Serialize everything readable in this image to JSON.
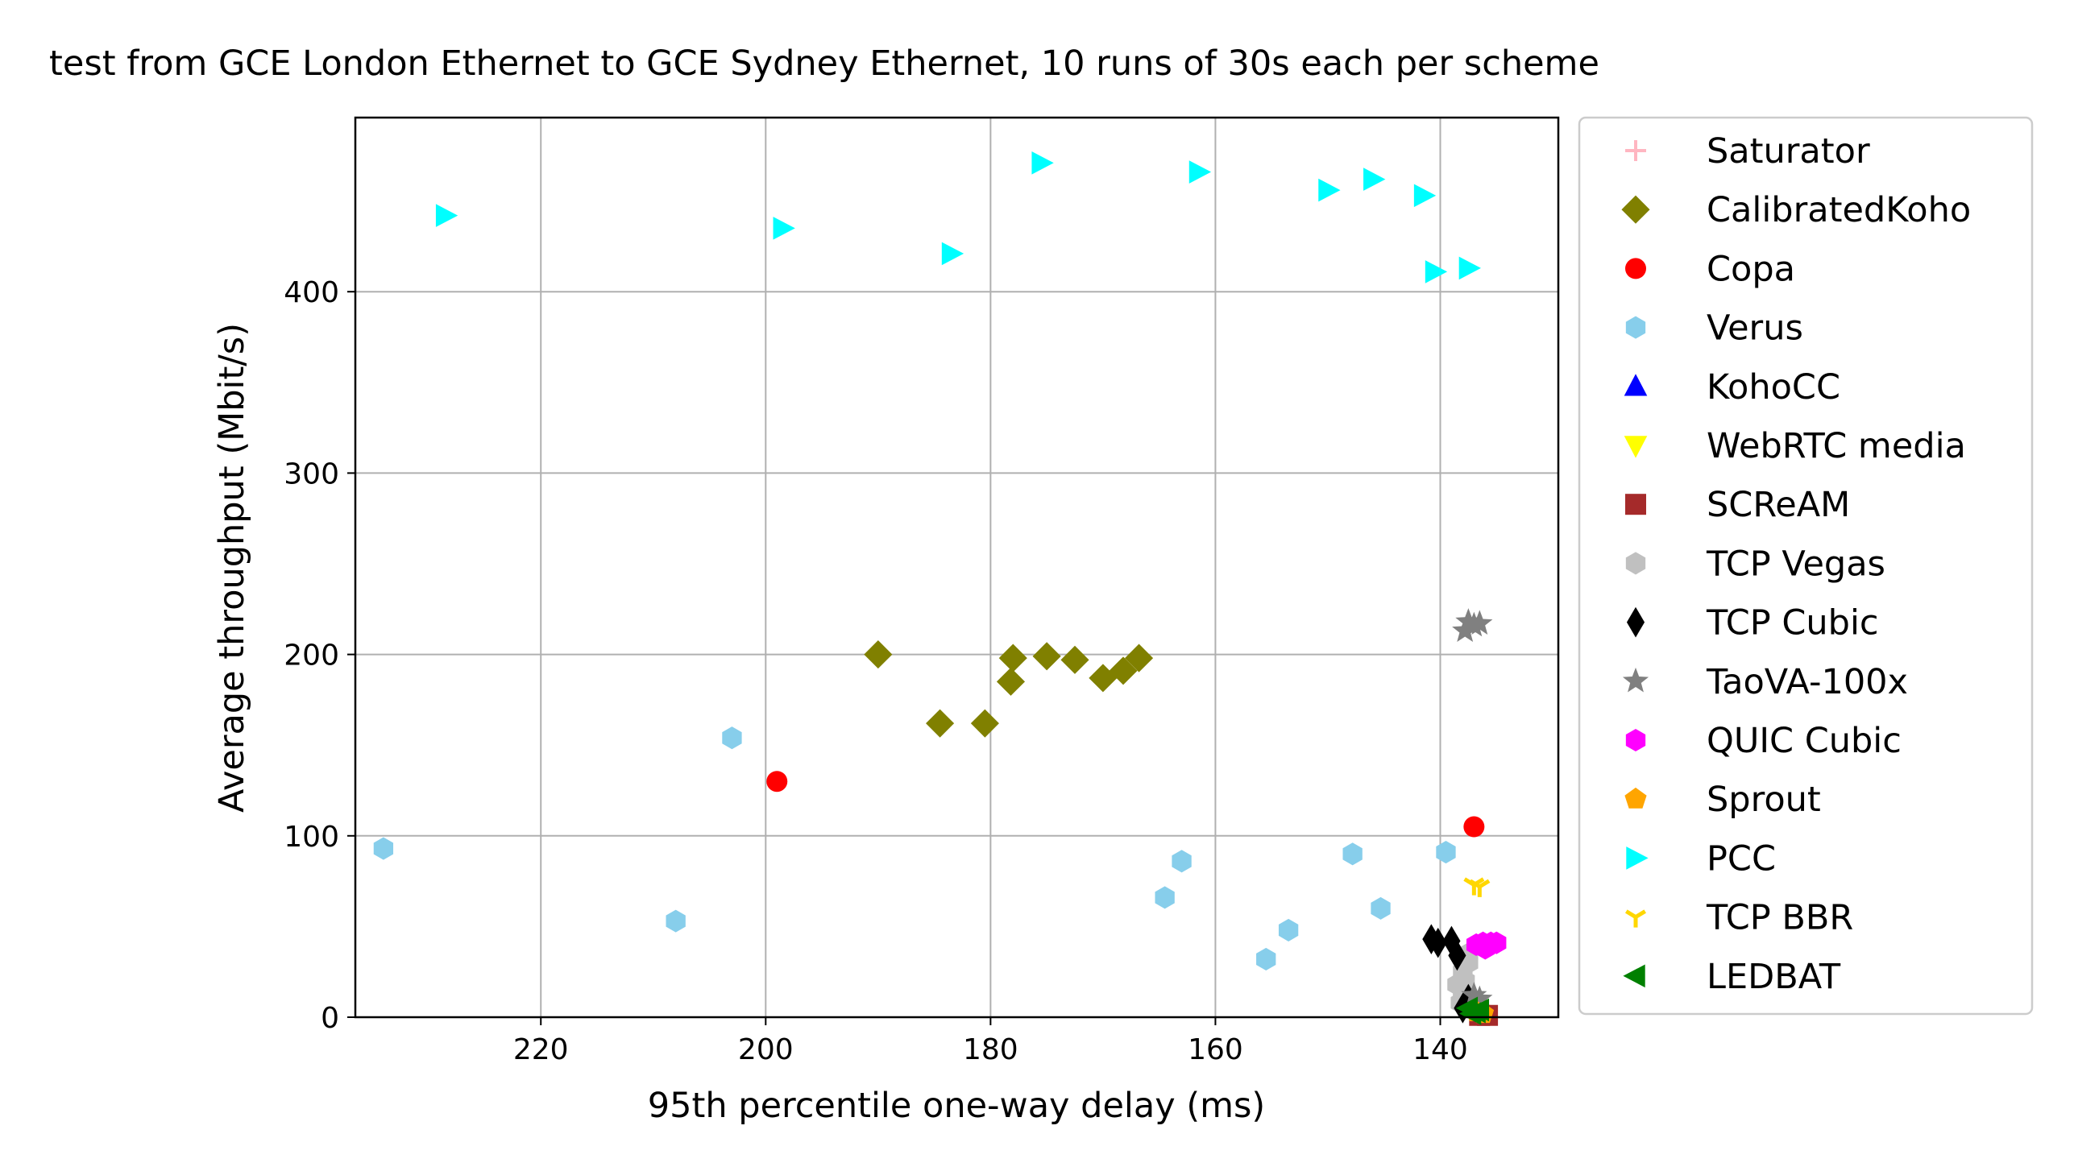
{
  "chart_data": {
    "type": "scatter",
    "title": "test from GCE London Ethernet to GCE Sydney Ethernet, 10 runs of 30s each per scheme",
    "xlabel": "95th percentile one-way delay (ms)",
    "ylabel": "Average throughput (Mbit/s)",
    "x_inverted": true,
    "xlim": [
      236.5,
      129.5
    ],
    "ylim": [
      0,
      496
    ],
    "xticks": [
      220,
      200,
      180,
      160,
      140
    ],
    "yticks": [
      0,
      100,
      200,
      300,
      400
    ],
    "xtick_labels": [
      "220",
      "200",
      "180",
      "160",
      "140"
    ],
    "ytick_labels": [
      "0",
      "100",
      "200",
      "300",
      "400"
    ],
    "grid": true,
    "legend_position": "outside-right",
    "series": [
      {
        "name": "Saturator",
        "color": "#ffb6c1",
        "marker": "plus",
        "points": []
      },
      {
        "name": "CalibratedKoho",
        "color": "#808000",
        "marker": "diamond",
        "points": [
          [
            190,
            200
          ],
          [
            184.5,
            162
          ],
          [
            180.5,
            162
          ],
          [
            178.2,
            185
          ],
          [
            178,
            198
          ],
          [
            175,
            199
          ],
          [
            172.5,
            197
          ],
          [
            170,
            187
          ],
          [
            168.2,
            191
          ],
          [
            166.8,
            198
          ]
        ]
      },
      {
        "name": "Copa",
        "color": "#ff0000",
        "marker": "circle",
        "points": [
          [
            199,
            130
          ],
          [
            137,
            105
          ]
        ]
      },
      {
        "name": "Verus",
        "color": "#87ceeb",
        "marker": "hexagon",
        "points": [
          [
            234,
            93
          ],
          [
            208,
            53
          ],
          [
            203,
            154
          ],
          [
            164.5,
            66
          ],
          [
            163,
            86
          ],
          [
            155.5,
            32
          ],
          [
            153.5,
            48
          ],
          [
            147.8,
            90
          ],
          [
            145.3,
            60
          ],
          [
            139.5,
            91
          ]
        ]
      },
      {
        "name": "KohoCC",
        "color": "#0000ff",
        "marker": "triangle-up",
        "points": []
      },
      {
        "name": "WebRTC media",
        "color": "#ffff00",
        "marker": "triangle-down",
        "points": []
      },
      {
        "name": "SCReAM",
        "color": "#a52a2a",
        "marker": "square",
        "points": [
          [
            135.8,
            1
          ],
          [
            136.5,
            1
          ]
        ]
      },
      {
        "name": "TCP Vegas",
        "color": "#c0c0c0",
        "marker": "hexagon",
        "points": [
          [
            138,
            25
          ],
          [
            138.5,
            18
          ],
          [
            137.5,
            30
          ],
          [
            138,
            12
          ],
          [
            137.8,
            20
          ],
          [
            138.2,
            8
          ],
          [
            137.5,
            35
          ],
          [
            138,
            15
          ]
        ]
      },
      {
        "name": "TCP Cubic",
        "color": "#000000",
        "marker": "thin-diamond",
        "points": [
          [
            140.8,
            43
          ],
          [
            140.2,
            41
          ],
          [
            139,
            42
          ],
          [
            138.5,
            34
          ],
          [
            138,
            5
          ],
          [
            137.5,
            10
          ]
        ]
      },
      {
        "name": "TaoVA-100x",
        "color": "#808080",
        "marker": "star",
        "points": [
          [
            137.5,
            218
          ],
          [
            137,
            216
          ],
          [
            136.5,
            217
          ],
          [
            137.8,
            213
          ],
          [
            137,
            12
          ],
          [
            136.5,
            10
          ]
        ]
      },
      {
        "name": "QUIC Cubic",
        "color": "#ff00ff",
        "marker": "hexagon",
        "points": [
          [
            136.8,
            40
          ],
          [
            136.2,
            41
          ],
          [
            135.5,
            41
          ],
          [
            136,
            38
          ],
          [
            135,
            41
          ]
        ]
      },
      {
        "name": "Sprout",
        "color": "#ffa500",
        "marker": "pentagon",
        "points": [
          [
            136.8,
            3
          ],
          [
            136.2,
            2
          ]
        ]
      },
      {
        "name": "PCC",
        "color": "#00ffff",
        "marker": "triangle-right",
        "points": [
          [
            228.5,
            442
          ],
          [
            198.5,
            435
          ],
          [
            183.5,
            421
          ],
          [
            175.5,
            471
          ],
          [
            161.5,
            466
          ],
          [
            150,
            456
          ],
          [
            146,
            462
          ],
          [
            141.5,
            453
          ],
          [
            140.5,
            411
          ],
          [
            137.5,
            413
          ]
        ]
      },
      {
        "name": "TCP BBR",
        "color": "#ffd700",
        "marker": "tri-down",
        "points": [
          [
            137,
            73
          ],
          [
            136.5,
            72
          ]
        ]
      },
      {
        "name": "LEDBAT",
        "color": "#008000",
        "marker": "triangle-left",
        "points": [
          [
            137.5,
            5
          ],
          [
            136.8,
            3
          ],
          [
            136.5,
            4
          ],
          [
            137.2,
            2
          ]
        ]
      }
    ]
  }
}
